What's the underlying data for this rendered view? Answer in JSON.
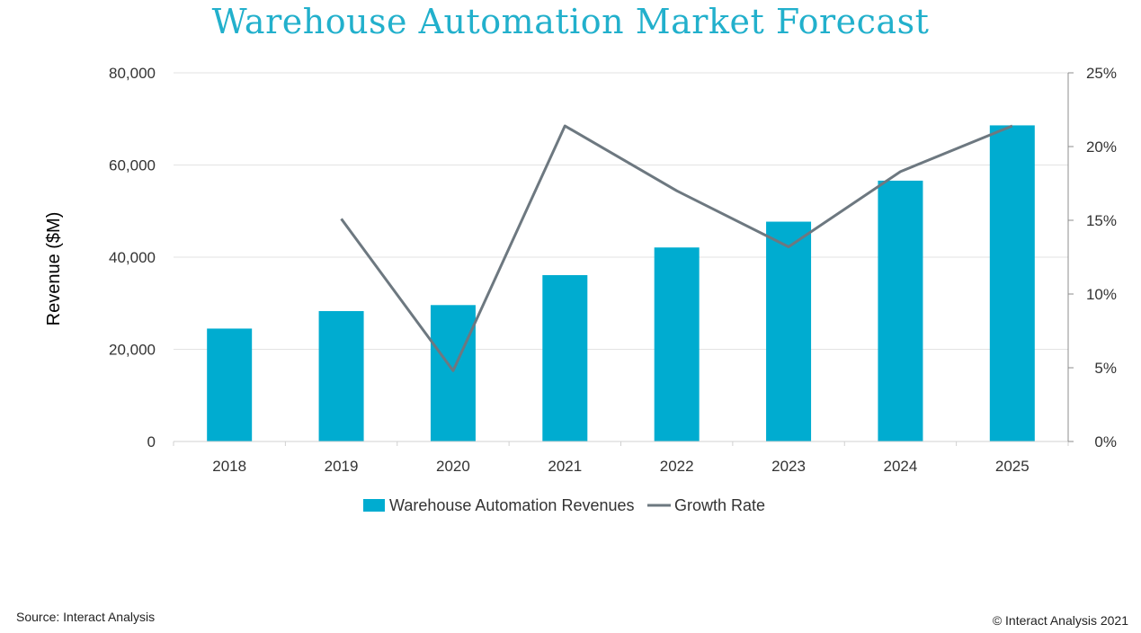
{
  "chart_data": {
    "type": "bar",
    "title": "Warehouse Automation Market Forecast",
    "ylabel": "Revenue ($M)",
    "categories": [
      "2018",
      "2019",
      "2020",
      "2021",
      "2022",
      "2023",
      "2024",
      "2025"
    ],
    "series": [
      {
        "name": "Warehouse Automation Revenues",
        "kind": "bar",
        "axis": "left",
        "color": "#00acd0",
        "values": [
          24500,
          28300,
          29600,
          36100,
          42100,
          47700,
          56600,
          68600
        ]
      },
      {
        "name": "Growth Rate",
        "kind": "line",
        "axis": "right",
        "color": "#6d7880",
        "values": [
          null,
          15.1,
          4.8,
          21.4,
          17.0,
          13.2,
          18.3,
          21.4
        ]
      }
    ],
    "ylim": [
      0,
      80000
    ],
    "yticks": [
      0,
      20000,
      40000,
      60000,
      80000
    ],
    "ytick_labels": [
      "0",
      "20,000",
      "40,000",
      "60,000",
      "80,000"
    ],
    "y2lim": [
      0,
      25
    ],
    "y2ticks": [
      0,
      5,
      10,
      15,
      20,
      25
    ],
    "y2tick_labels": [
      "0%",
      "5%",
      "10%",
      "15%",
      "20%",
      "25%"
    ],
    "grid": true,
    "legend_position": "bottom"
  },
  "footer": {
    "source": "Source: Interact Analysis",
    "copyright": "© Interact Analysis 2021"
  }
}
